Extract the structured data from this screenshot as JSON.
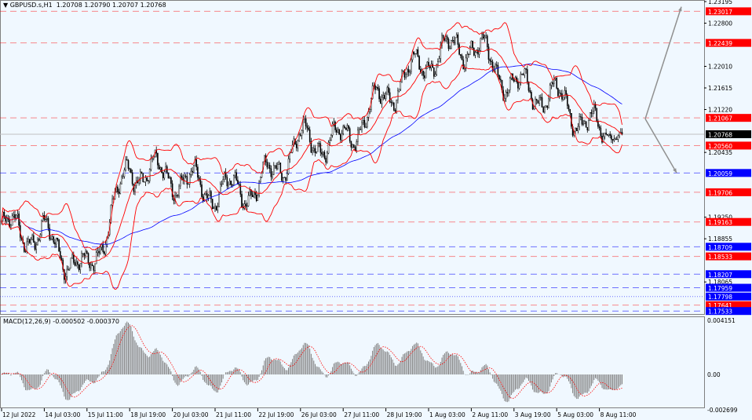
{
  "header": {
    "menu_glyph": "▼",
    "symbol": "GBPUSD.s,H1",
    "ohlc": "1.20708 1.20790 1.20707 1.20768"
  },
  "macd": {
    "label": "MACD(12,26,9) -0.000502 -0.000370",
    "scale_labels": [
      {
        "value": 0.004151,
        "text": "0.004151"
      },
      {
        "value": 0,
        "text": "0.00"
      },
      {
        "value": -0.002699,
        "text": "-0.002699"
      }
    ],
    "histogram_color": "#808080",
    "signal_color": "#ff0000"
  },
  "price_axis": [
    {
      "value": 1.23195,
      "text": "1.23195"
    },
    {
      "value": 1.228,
      "text": "1.22800"
    },
    {
      "value": 1.2201,
      "text": "1.22010"
    },
    {
      "value": 1.21615,
      "text": "1.21615"
    },
    {
      "value": 1.2122,
      "text": "1.21220"
    },
    {
      "value": 1.20435,
      "text": "1.20435"
    },
    {
      "value": 1.1925,
      "text": "1.19250"
    },
    {
      "value": 1.18855,
      "text": "1.18855"
    },
    {
      "value": 1.18065,
      "text": "1.18065"
    }
  ],
  "levels": [
    {
      "value": 1.23017,
      "text": "1.23017",
      "color": "#ff0000",
      "style": "dashed"
    },
    {
      "value": 1.22439,
      "text": "1.22439",
      "color": "#ff0000",
      "style": "dashed"
    },
    {
      "value": 1.21067,
      "text": "1.21067",
      "color": "#ff0000",
      "style": "dashed"
    },
    {
      "value": 1.2056,
      "text": "1.20560",
      "color": "#ff0000",
      "style": "dashed"
    },
    {
      "value": 1.20059,
      "text": "1.20059",
      "color": "#0000ff",
      "style": "dashed"
    },
    {
      "value": 1.19706,
      "text": "1.19706",
      "color": "#ff0000",
      "style": "dashed"
    },
    {
      "value": 1.19163,
      "text": "1.19163",
      "color": "#ff0000",
      "style": "dashed"
    },
    {
      "value": 1.18709,
      "text": "1.18709",
      "color": "#0000ff",
      "style": "dashed"
    },
    {
      "value": 1.18533,
      "text": "1.18533",
      "color": "#ff0000",
      "style": "dashed"
    },
    {
      "value": 1.18207,
      "text": "1.18207",
      "color": "#0000ff",
      "style": "dashed"
    },
    {
      "value": 1.17959,
      "text": "1.17959",
      "color": "#0000ff",
      "style": "dashed"
    },
    {
      "value": 1.17798,
      "text": "1.17798",
      "color": "#0000ff",
      "style": "dotted"
    },
    {
      "value": 1.17641,
      "text": "1.17641",
      "color": "#ff0000",
      "style": "dashed"
    },
    {
      "value": 1.17533,
      "text": "1.17533",
      "color": "#0000ff",
      "style": "dashed"
    }
  ],
  "current_price": {
    "value": 1.20768,
    "text": "1.20768",
    "color": "#000000"
  },
  "chart_data": {
    "type": "candlestick",
    "title": "",
    "symbol": "GBPUSD.s",
    "timeframe": "H1",
    "ylim": [
      1.1745,
      1.23195
    ],
    "indicators": [
      "Bollinger Bands",
      "Moving Average",
      "MACD(12,26,9)"
    ],
    "band_color": "#ff0000",
    "ma_color": "#0000ff",
    "time_labels": [
      "12 Jul 2022",
      "14 Jul 03:00",
      "15 Jul 11:00",
      "18 Jul 19:00",
      "20 Jul 03:00",
      "21 Jul 11:00",
      "22 Jul 19:00",
      "26 Jul 03:00",
      "27 Jul 11:00",
      "28 Jul 19:00",
      "1 Aug 03:00",
      "2 Aug 11:00",
      "3 Aug 19:00",
      "5 Aug 03:00",
      "8 Aug 11:00"
    ],
    "approx_close_at_labels": [
      1.1906,
      1.1891,
      1.182,
      1.2014,
      1.1999,
      1.1971,
      1.1978,
      1.2064,
      1.2064,
      1.215,
      1.2215,
      1.2243,
      1.2164,
      1.2143,
      1.2078
    ],
    "last_close": 1.20768,
    "forecast_arrows": [
      {
        "from": 1.2105,
        "to": 1.231
      },
      {
        "from": 1.2105,
        "to": 1.2006
      }
    ]
  }
}
